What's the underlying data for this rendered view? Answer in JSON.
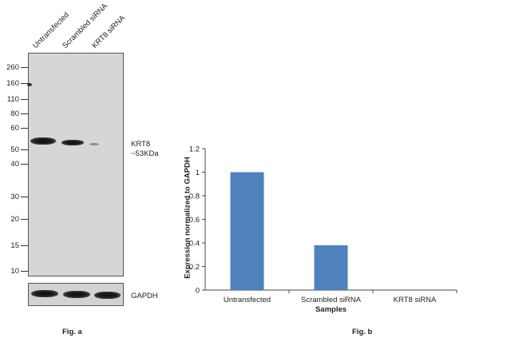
{
  "fig_a": {
    "label": "Fig. a",
    "lanes": [
      "Untransfected",
      "Scrambled siRNA",
      "KRT8 siRNA"
    ],
    "markers": [
      "260",
      "160",
      "110",
      "80",
      "60",
      "50",
      "40",
      "30",
      "20",
      "15",
      "10"
    ],
    "target_label": "KRT8",
    "target_size": "~53KDa",
    "loading_control": "GAPDH",
    "colors": {
      "membrane": "#d6d6d6",
      "band": "#111111"
    }
  },
  "fig_b": {
    "label": "Fig. b"
  },
  "chart_data": {
    "type": "bar",
    "categories": [
      "Untransfected",
      "Scrambled siRNA",
      "KRT8 siRNA"
    ],
    "values": [
      1.0,
      0.38,
      0.0
    ],
    "xlabel": "Samples",
    "ylabel": "Expression normalized to GAPDH",
    "ylim": [
      0,
      1.2
    ],
    "yticks": [
      "0",
      "0.2",
      "0.4",
      "0.6",
      "0.8",
      "1",
      "1.2"
    ],
    "grid": false,
    "bar_color": "#4f81bd"
  }
}
